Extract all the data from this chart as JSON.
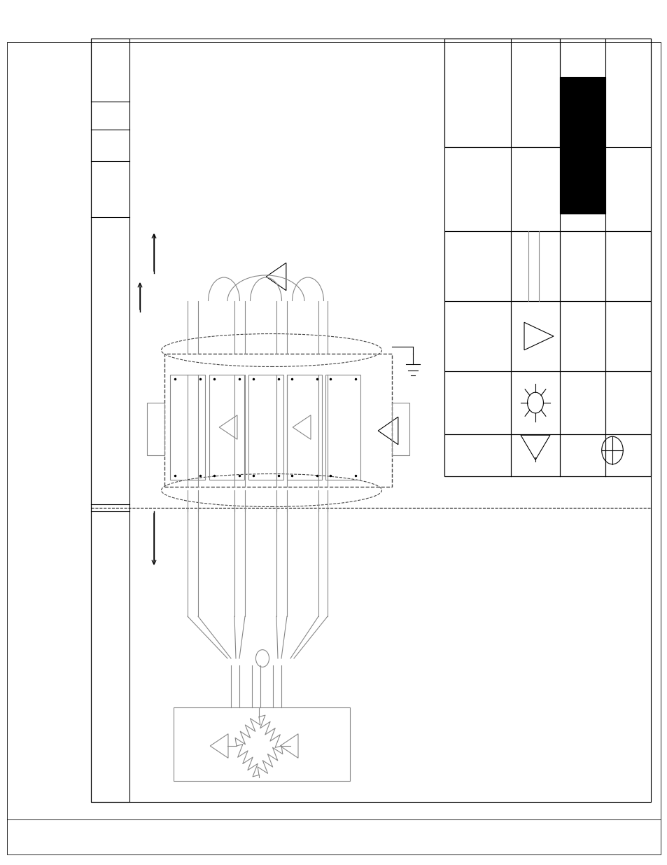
{
  "bg_color": "#ffffff",
  "lc": "#000000",
  "gray": "#888888",
  "dashed_color": "#444444",
  "lw_main": 1.5,
  "lw_thin": 0.8,
  "lw_med": 1.0
}
